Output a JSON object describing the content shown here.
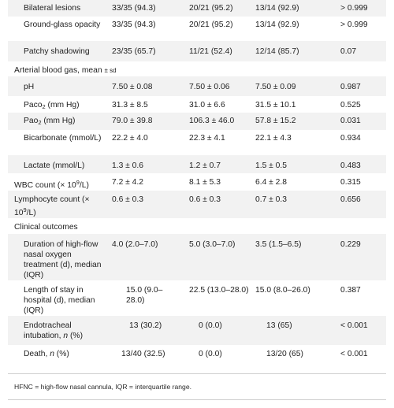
{
  "rows": [
    {
      "label": "Bilateral lesions",
      "c1": "33/35 (94.3)",
      "c2": "20/21 (95.2)",
      "c3": "13/14 (92.9)",
      "c4": "> 0.999"
    },
    {
      "label": "Ground-glass opacity",
      "c1": "33/35 (94.3)",
      "c2": "20/21 (95.2)",
      "c3": "13/14 (92.9)",
      "c4": "> 0.999"
    },
    {
      "label": "Patchy shadowing",
      "c1": "23/35 (65.7)",
      "c2": "11/21 (52.4)",
      "c3": "12/14 (85.7)",
      "c4": "0.07"
    },
    {
      "label": "Arterial blood gas, mean ",
      "label_small": "± sd"
    },
    {
      "label": "pH",
      "c1": "7.50 ± 0.08",
      "c2": "7.50 ± 0.06",
      "c3": "7.50 ± 0.09",
      "c4": "0.987"
    },
    {
      "label": "Paco",
      "label_sub": "2",
      "label_tail": " (mm Hg)",
      "c1": "31.3 ± 8.5",
      "c2": "31.0 ± 6.6",
      "c3": "31.5 ± 10.1",
      "c4": "0.525"
    },
    {
      "label": "Pao",
      "label_sub": "2",
      "label_tail": " (mm Hg)",
      "c1": "79.0 ± 39.8",
      "c2": "106.3 ± 46.0",
      "c3": "57.8 ± 15.2",
      "c4": "0.031"
    },
    {
      "label": "Bicarbonate (mmol/L)",
      "c1": "22.2 ± 4.0",
      "c2": "22.3 ± 4.1",
      "c3": "22.1 ± 4.3",
      "c4": "0.934"
    },
    {
      "label": "Lactate (mmol/L)",
      "c1": "1.3 ± 0.6",
      "c2": "1.2 ± 0.7",
      "c3": "1.5 ± 0.5",
      "c4": "0.483"
    },
    {
      "label": "WBC count (× 10",
      "label_sup": "9",
      "label_tail": "/L)",
      "c1": "7.2 ± 4.2",
      "c2": "8.1 ± 5.3",
      "c3": "6.4 ± 2.8",
      "c4": "0.315"
    },
    {
      "label": "Lymphocyte count (× 10",
      "label_sup": "9",
      "label_tail": "/L)",
      "c1": "0.6 ± 0.3",
      "c2": "0.6 ± 0.3",
      "c3": "0.7 ± 0.3",
      "c4": "0.656"
    },
    {
      "label": "Clinical outcomes"
    },
    {
      "label": "Duration of high-flow nasal oxygen treatment (d), median (IQR)",
      "c1": "4.0 (2.0–7.0)",
      "c2": "5.0 (3.0–7.0)",
      "c3": "3.5 (1.5–6.5)",
      "c4": "0.229"
    },
    {
      "label": "Length of stay in hospital (d), median (IQR)",
      "c1": "15.0 (9.0–28.0)",
      "c2": "22.5 (13.0–28.0)",
      "c3": "15.0 (8.0–26.0)",
      "c4": "0.387"
    },
    {
      "label": "Endotracheal intubation, ",
      "label_italic": "n",
      "label_tail": " (%)",
      "c1": "13 (30.2)",
      "c2": "0 (0.0)",
      "c3": "13 (65)",
      "c4": "< 0.001"
    },
    {
      "label": "Death, ",
      "label_italic": "n",
      "label_tail": " (%)",
      "c1": "13/40 (32.5)",
      "c2": "0 (0.0)",
      "c3": "13/20 (65)",
      "c4": "< 0.001"
    }
  ],
  "footnote": "HFNC = high-flow nasal cannula, IQR = interquartile range."
}
